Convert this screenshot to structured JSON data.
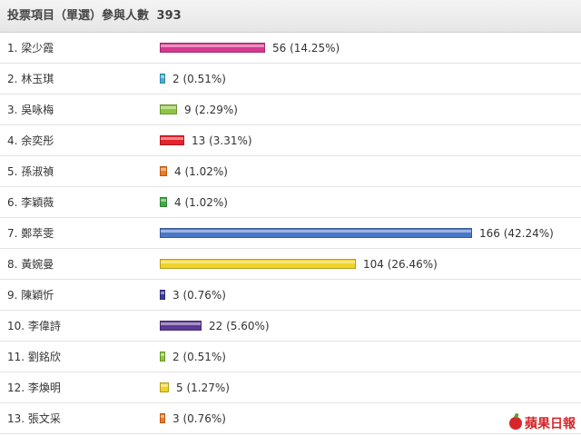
{
  "header": {
    "title": "投票項目（單選）參與人數",
    "total": "393"
  },
  "logo": {
    "text": "蘋果日報"
  },
  "colors": {
    "pink": "#d6388f",
    "cyan": "#41b2d8",
    "lime": "#8ec63f",
    "red": "#e4232e",
    "orange": "#f07a1f",
    "green": "#3faa46",
    "blue": "#4a78c8",
    "yellow": "#f1d327",
    "indigo": "#3e3c9a",
    "purple": "#5c3a96"
  },
  "chart_data": {
    "type": "bar",
    "orientation": "horizontal",
    "title": "投票項目（單選）參與人數 393",
    "total": 393,
    "categories": [
      "1. 梁少霞",
      "2. 林玉琪",
      "3. 吳咏梅",
      "4. 余奕彤",
      "5. 孫淑禎",
      "6. 李穎薇",
      "7. 鄭萃雯",
      "8. 黃婉曼",
      "9. 陳穎忻",
      "10. 李偉詩",
      "11. 劉銘欣",
      "12. 李煥明",
      "13. 張文采"
    ],
    "values": [
      56,
      2,
      9,
      13,
      4,
      4,
      166,
      104,
      3,
      22,
      2,
      5,
      3
    ],
    "value_labels": [
      "56 (14.25%)",
      "2 (0.51%)",
      "9 (2.29%)",
      "13 (3.31%)",
      "4 (1.02%)",
      "4 (1.02%)",
      "166 (42.24%)",
      "104 (26.46%)",
      "3 (0.76%)",
      "22 (5.60%)",
      "2 (0.51%)",
      "5 (1.27%)",
      "3 (0.76%)"
    ],
    "bar_colors": [
      "pink",
      "cyan",
      "lime",
      "red",
      "orange",
      "green",
      "blue",
      "yellow",
      "indigo",
      "purple",
      "lime",
      "yellow",
      "orange"
    ],
    "xlim": [
      0,
      166
    ],
    "grid": false,
    "legend": "none"
  }
}
